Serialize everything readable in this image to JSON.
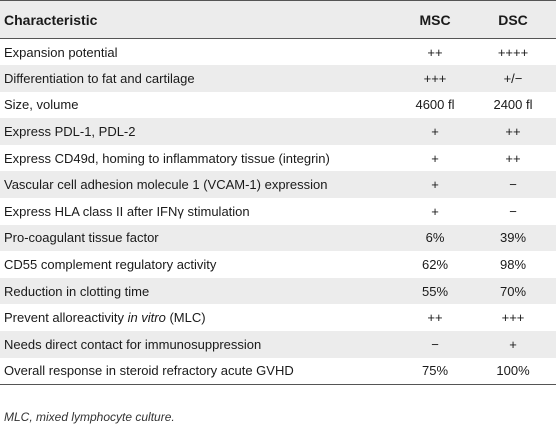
{
  "table": {
    "headers": [
      "Characteristic",
      "MSC",
      "DSC"
    ],
    "rows": [
      {
        "characteristic": "Expansion potential",
        "msc": "++",
        "dsc": "++++"
      },
      {
        "characteristic": "Differentiation to fat and cartilage",
        "msc": "+++",
        "dsc": "+/−"
      },
      {
        "characteristic": "Size, volume",
        "msc": "4600 fl",
        "dsc": "2400 fl"
      },
      {
        "characteristic": "Express PDL-1, PDL-2",
        "msc": "+",
        "dsc": "++"
      },
      {
        "characteristic": "Express CD49d, homing to inflammatory tissue (integrin)",
        "msc": "+",
        "dsc": "++"
      },
      {
        "characteristic": "Vascular cell adhesion molecule 1 (VCAM-1) expression",
        "msc": "+",
        "dsc": "−"
      },
      {
        "characteristic": "Express HLA class II after IFNγ stimulation",
        "msc": "+",
        "dsc": "−"
      },
      {
        "characteristic": "Pro-coagulant tissue factor",
        "msc": "6%",
        "dsc": "39%"
      },
      {
        "characteristic": "CD55 complement regulatory activity",
        "msc": "62%",
        "dsc": "98%"
      },
      {
        "characteristic": "Reduction in clotting time",
        "msc": "55%",
        "dsc": "70%"
      },
      {
        "characteristic_prefix": "Prevent alloreactivity ",
        "characteristic_italic": "in vitro",
        "characteristic_suffix": " (MLC)",
        "msc": "++",
        "dsc": "+++"
      },
      {
        "characteristic": "Needs direct contact for immunosuppression",
        "msc": "−",
        "dsc": "+"
      },
      {
        "characteristic": "Overall response in steroid refractory acute GVHD",
        "msc": "75%",
        "dsc": "100%"
      }
    ]
  },
  "footnote": "MLC, mixed lymphocyte culture."
}
